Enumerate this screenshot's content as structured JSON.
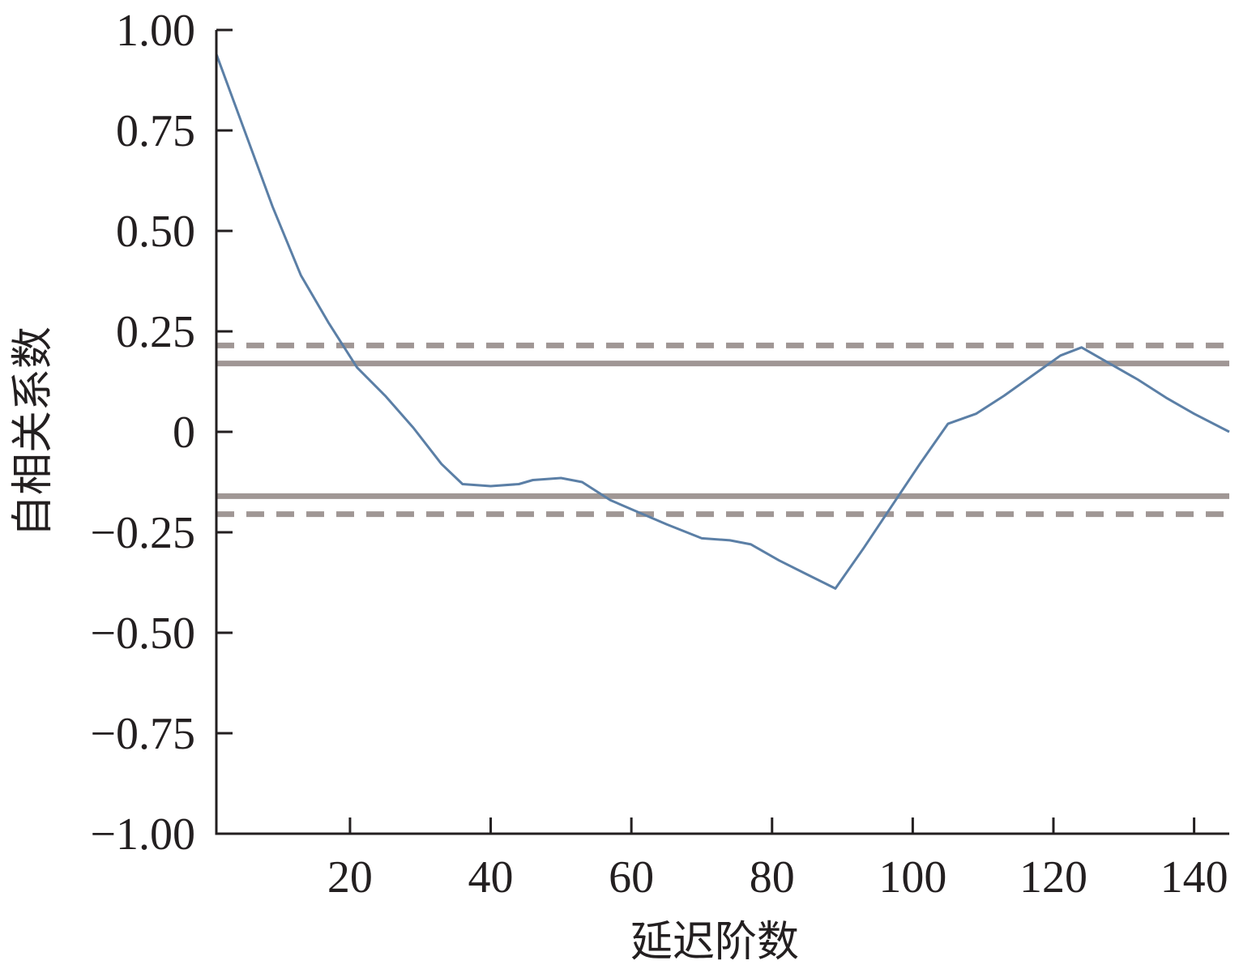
{
  "chart_data": {
    "type": "line",
    "title": "",
    "xlabel": "延迟阶数",
    "ylabel": "自相关系数",
    "xlim": [
      1,
      145
    ],
    "ylim": [
      -1.0,
      1.0
    ],
    "x_ticks": [
      20,
      40,
      60,
      80,
      100,
      120,
      140
    ],
    "x_tick_labels": [
      "20",
      "40",
      "60",
      "80",
      "100",
      "120",
      "140"
    ],
    "y_ticks": [
      1.0,
      0.75,
      0.5,
      0.25,
      0,
      -0.25,
      -0.5,
      -0.75,
      -1.0
    ],
    "y_tick_labels": [
      "1.00",
      "0.75",
      "0.50",
      "0.25",
      "0",
      "−0.25",
      "−0.50",
      "−0.75",
      "−1.00"
    ],
    "grid": false,
    "colors": {
      "series": "#5b7fa6",
      "reference": "#a09795",
      "axis": "#231f20"
    },
    "series": [
      {
        "x": [
          1,
          5,
          9,
          13,
          17,
          21,
          25,
          29,
          33,
          36,
          40,
          44,
          46,
          50,
          53,
          57,
          61,
          65,
          70,
          74,
          77,
          81,
          85,
          89,
          93,
          97,
          101,
          105,
          109,
          113,
          117,
          121,
          124,
          128,
          132,
          136,
          140,
          145
        ],
        "y": [
          0.94,
          0.75,
          0.56,
          0.39,
          0.27,
          0.16,
          0.09,
          0.01,
          -0.08,
          -0.13,
          -0.135,
          -0.13,
          -0.12,
          -0.115,
          -0.125,
          -0.17,
          -0.2,
          -0.23,
          -0.265,
          -0.27,
          -0.28,
          -0.32,
          -0.355,
          -0.39,
          -0.29,
          -0.185,
          -0.08,
          0.02,
          0.045,
          0.09,
          0.14,
          0.19,
          0.21,
          0.17,
          0.13,
          0.085,
          0.045,
          0.0
        ]
      }
    ],
    "reference_lines": [
      {
        "y": 0.17,
        "style": "solid"
      },
      {
        "y": -0.16,
        "style": "solid"
      },
      {
        "y": 0.215,
        "style": "dashed"
      },
      {
        "y": -0.205,
        "style": "dashed"
      }
    ]
  }
}
